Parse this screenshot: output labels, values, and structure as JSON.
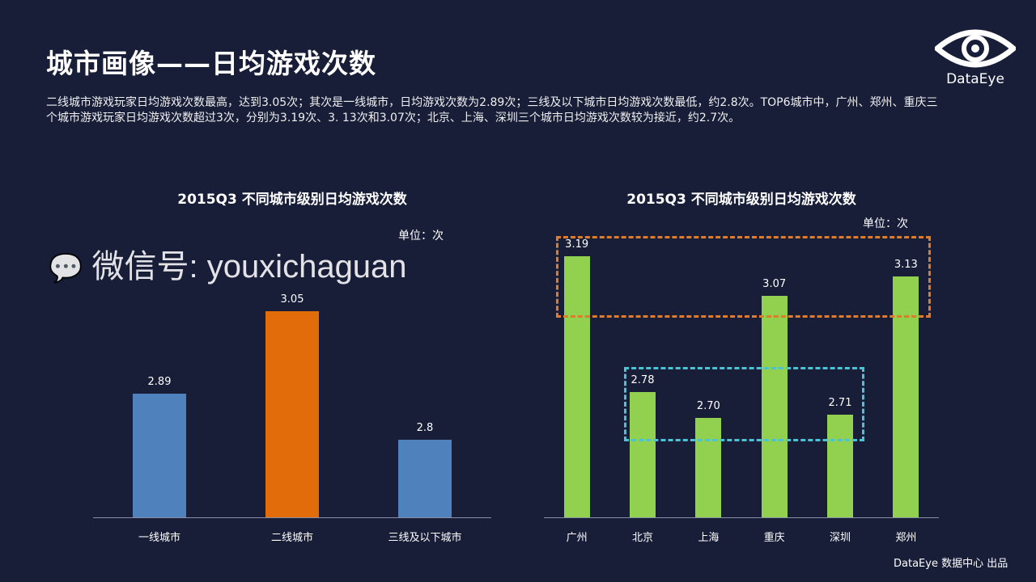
{
  "title": "城市画像——日均游戏次数",
  "description": "二线城市游戏玩家日均游戏次数最高，达到3.05次；其次是一线城市，日均游戏次数为2.89次；三线及以下城市日均游戏次数最低，约2.8次。TOP6城市中，广州、郑州、重庆三个城市游戏玩家日均游戏次数超过3次，分别为3.19次、3. 13次和3.07次；北京、上海、深圳三个城市日均游戏次数较为接近，约2.7次。",
  "logo": {
    "text": "DataEye"
  },
  "footer": "DataEye 数据中心 出品",
  "watermark": "微信号: youxichaguan",
  "colors": {
    "background": "#181d38",
    "blue": "#4f81bd",
    "orange": "#e36c0a",
    "green": "#92d050",
    "orange_box": "#e07b2a",
    "cyan_box": "#4bc3d6"
  },
  "chart_data": [
    {
      "type": "bar",
      "title": "2015Q3 不同城市级别日均游戏次数",
      "unit": "单位：次",
      "categories": [
        "一线城市",
        "二线城市",
        "三线及以下城市"
      ],
      "values": [
        2.89,
        3.05,
        2.8
      ],
      "value_labels": [
        "2.89",
        "3.05",
        "2.8"
      ],
      "bar_colors": [
        "#4f81bd",
        "#e36c0a",
        "#4f81bd"
      ],
      "ylim": [
        2.65,
        3.1
      ],
      "grid": false
    },
    {
      "type": "bar",
      "title": "2015Q3 不同城市级别日均游戏次数",
      "unit": "单位：次",
      "categories": [
        "广州",
        "北京",
        "上海",
        "重庆",
        "深圳",
        "郑州"
      ],
      "values": [
        3.19,
        2.78,
        2.7,
        3.07,
        2.71,
        3.13
      ],
      "value_labels": [
        "3.19",
        "2.78",
        "2.70",
        "3.07",
        "2.71",
        "3.13"
      ],
      "bar_color": "#92d050",
      "ylim": [
        2.4,
        3.2
      ],
      "grid": false,
      "highlights": [
        {
          "group": [
            "广州",
            "重庆",
            "郑州"
          ],
          "color": "orange dashed"
        },
        {
          "group": [
            "北京",
            "上海",
            "深圳"
          ],
          "color": "cyan dashed"
        }
      ]
    }
  ]
}
